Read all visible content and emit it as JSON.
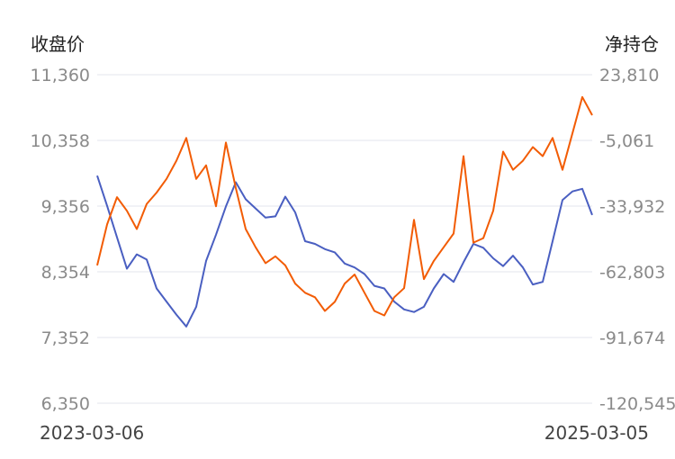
{
  "chart_data": {
    "type": "line",
    "left_axis_title": "收盘价",
    "right_axis_title": "净持仓",
    "x_start_label": "2023-03-06",
    "x_end_label": "2025-03-05",
    "left_ticks": [
      "11,360",
      "10,358",
      "9,356",
      "8,354",
      "7,352",
      "6,350"
    ],
    "right_ticks": [
      "23,810",
      "-5,061",
      "-33,932",
      "-62,803",
      "-91,674",
      "-120,545"
    ],
    "left_range": [
      6350,
      11360
    ],
    "right_range": [
      -120545,
      23810
    ],
    "grid": "horizontal",
    "series": [
      {
        "axis": "left",
        "color": "#4a5fc1",
        "x": [
          0,
          2,
          4,
          6,
          8,
          10,
          12,
          14,
          16,
          18,
          20,
          22,
          24,
          26,
          28,
          30,
          32,
          34,
          36,
          38,
          40,
          42,
          44,
          46,
          48,
          50,
          52,
          54,
          56,
          58,
          60,
          62,
          64,
          66,
          68,
          70,
          72,
          74,
          76,
          78,
          80,
          82,
          84,
          86,
          88,
          90,
          92,
          94,
          96,
          98,
          100
        ],
        "values": [
          9820,
          9360,
          8880,
          8400,
          8620,
          8540,
          8100,
          7900,
          7700,
          7520,
          7820,
          8520,
          8920,
          9350,
          9720,
          9460,
          9320,
          9180,
          9200,
          9500,
          9260,
          8820,
          8780,
          8700,
          8650,
          8480,
          8420,
          8320,
          8140,
          8100,
          7900,
          7780,
          7740,
          7820,
          8100,
          8320,
          8200,
          8500,
          8780,
          8720,
          8560,
          8440,
          8600,
          8420,
          8160,
          8200,
          8820,
          9450,
          9580,
          9620,
          9220
        ]
      },
      {
        "axis": "right",
        "color": "#f25c05",
        "x": [
          0,
          2,
          4,
          6,
          8,
          10,
          12,
          14,
          16,
          18,
          20,
          22,
          24,
          26,
          28,
          30,
          32,
          34,
          36,
          38,
          40,
          42,
          44,
          46,
          48,
          50,
          52,
          54,
          56,
          58,
          60,
          62,
          64,
          66,
          68,
          70,
          72,
          74,
          76,
          78,
          80,
          82,
          84,
          86,
          88,
          90,
          92,
          94,
          96,
          98,
          100
        ],
        "values": [
          -60000,
          -42000,
          -30000,
          -36000,
          -44000,
          -33000,
          -28000,
          -22000,
          -14000,
          -4000,
          -22000,
          -16000,
          -34000,
          -6000,
          -26000,
          -44000,
          -52000,
          -59000,
          -56000,
          -60000,
          -68000,
          -72000,
          -74000,
          -80000,
          -76000,
          -68000,
          -64000,
          -72000,
          -80000,
          -82000,
          -74000,
          -70000,
          -40000,
          -66000,
          -58000,
          -52000,
          -46000,
          -12000,
          -50000,
          -48000,
          -36000,
          -10000,
          -18000,
          -14000,
          -8000,
          -12000,
          -4000,
          -18000,
          -2000,
          14000,
          6000
        ]
      }
    ]
  }
}
